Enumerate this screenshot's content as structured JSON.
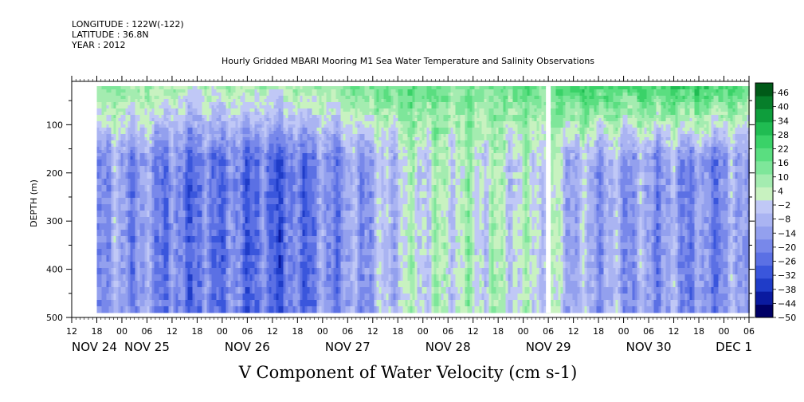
{
  "header": {
    "longitude": "LONGITUDE : 122W(-122)",
    "latitude": "LATITUDE : 36.8N",
    "year": "YEAR : 2012"
  },
  "chart_data": {
    "type": "heatmap",
    "title": "Hourly Gridded MBARI Mooring M1 Sea Water Temperature and Salinity Observations",
    "subtitle": "V Component of Water Velocity (cm s-1)",
    "ylabel": "DEPTH (m)",
    "y_reversed": true,
    "ylim": [
      500,
      10
    ],
    "y_ticks": [
      100,
      200,
      300,
      400,
      500
    ],
    "data_depth_range": [
      20,
      490
    ],
    "x_tick_labels": [
      "12",
      "18",
      "00",
      "06",
      "12",
      "18",
      "00",
      "06",
      "12",
      "18",
      "00",
      "06",
      "12",
      "18",
      "00",
      "06",
      "12",
      "18",
      "00",
      "06",
      "12",
      "18",
      "00",
      "06",
      "12",
      "18",
      "00",
      "06"
    ],
    "x_day_labels": [
      "NOV 24",
      "NOV 25",
      "NOV 26",
      "NOV 27",
      "NOV 28",
      "NOV 29",
      "NOV 30",
      "DEC 1"
    ],
    "data_start": "NOV 24 18:00",
    "data_end": "DEC 1 06:00",
    "colorbar": {
      "levels": [
        -50,
        -44,
        -38,
        -32,
        -26,
        -20,
        -14,
        -8,
        -2,
        4,
        10,
        16,
        22,
        28,
        34,
        40,
        46
      ],
      "labeled": [
        46,
        40,
        34,
        28,
        22,
        16,
        10,
        4,
        -2,
        -8,
        -14,
        -20,
        -26,
        -32,
        -38,
        -44,
        -50
      ],
      "negative_colors": [
        "#000066",
        "#0a1aa0",
        "#1f3cc8",
        "#3a56dc",
        "#5b70e4",
        "#7888ea",
        "#93a0ee",
        "#aab4f2",
        "#c0c8f6"
      ],
      "positive_colors": [
        "#c8f2c0",
        "#a4ecb0",
        "#7ee69a",
        "#5ade80",
        "#3ad268",
        "#20bc52",
        "#0e9e3c",
        "#067e2a",
        "#005a18"
      ]
    },
    "velocity_profile": {
      "time": [
        "NOV 24 18:00",
        "NOV 25 06:00",
        "NOV 25 18:00",
        "NOV 26 00:00",
        "NOV 26 12:00",
        "NOV 26 18:00",
        "NOV 27 00:00",
        "NOV 27 12:00",
        "NOV 27 18:00",
        "NOV 28 00:00",
        "NOV 28 12:00",
        "NOV 28 18:00",
        "NOV 29 00:00",
        "NOV 29 06:00",
        "NOV 29 12:00",
        "NOV 29 18:00",
        "NOV 30 00:00",
        "NOV 30 12:00",
        "NOV 30 18:00",
        "DEC 1 00:00",
        "DEC 1 06:00"
      ],
      "surface_v": [
        18,
        14,
        8,
        12,
        10,
        12,
        14,
        20,
        24,
        22,
        18,
        20,
        22,
        20,
        30,
        28,
        26,
        30,
        32,
        26,
        22
      ],
      "deep_v": [
        -10,
        -14,
        -22,
        -18,
        -24,
        -22,
        -16,
        -8,
        2,
        6,
        8,
        6,
        4,
        6,
        -6,
        -8,
        -10,
        -12,
        -16,
        -14,
        -4
      ]
    }
  }
}
